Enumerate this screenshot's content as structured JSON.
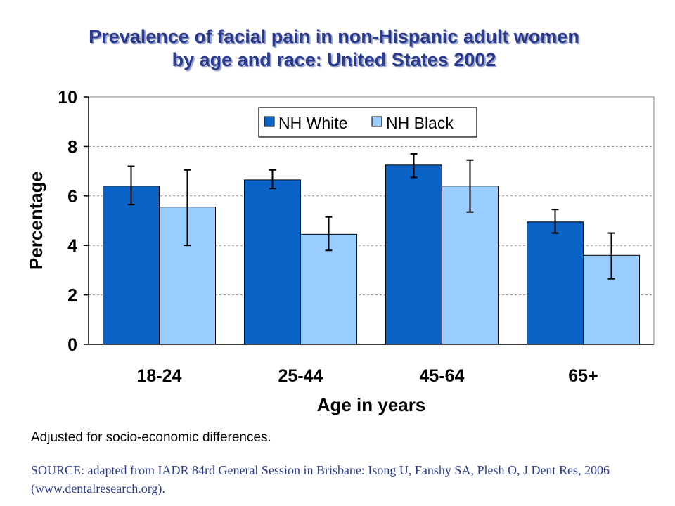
{
  "page": {
    "title_line1": "Prevalence of facial pain in non-Hispanic adult women",
    "title_line2": "by age and race: United States 2002",
    "note": "Adjusted for socio-economic differences.",
    "source": "SOURCE: adapted from IADR 84rd General Session in Brisbane: Isong U, Fanshy SA, Plesh O, J Dent Res, 2006 (www.dentalresearch.org)."
  },
  "chart_data": {
    "type": "bar",
    "title": "Prevalence of facial pain in non-Hispanic adult women by age and race: United States 2002",
    "xlabel": "Age in years",
    "ylabel": "Percentage",
    "ylim": [
      0,
      10
    ],
    "yticks": [
      0,
      2,
      4,
      6,
      8,
      10
    ],
    "grid": true,
    "legend": "top-center",
    "categories": [
      "18-24",
      "25-44",
      "45-64",
      "65+"
    ],
    "series": [
      {
        "name": "NH White",
        "color": "#0a64c8",
        "values": [
          6.4,
          6.65,
          7.25,
          4.95
        ],
        "error_low": [
          5.65,
          6.3,
          6.75,
          4.5
        ],
        "error_high": [
          7.2,
          7.05,
          7.7,
          5.45
        ]
      },
      {
        "name": "NH Black",
        "color": "#99ccff",
        "values": [
          5.55,
          4.45,
          6.4,
          3.6
        ],
        "error_low": [
          4.0,
          3.8,
          5.35,
          2.65
        ],
        "error_high": [
          7.05,
          5.15,
          7.45,
          4.5
        ]
      }
    ]
  }
}
